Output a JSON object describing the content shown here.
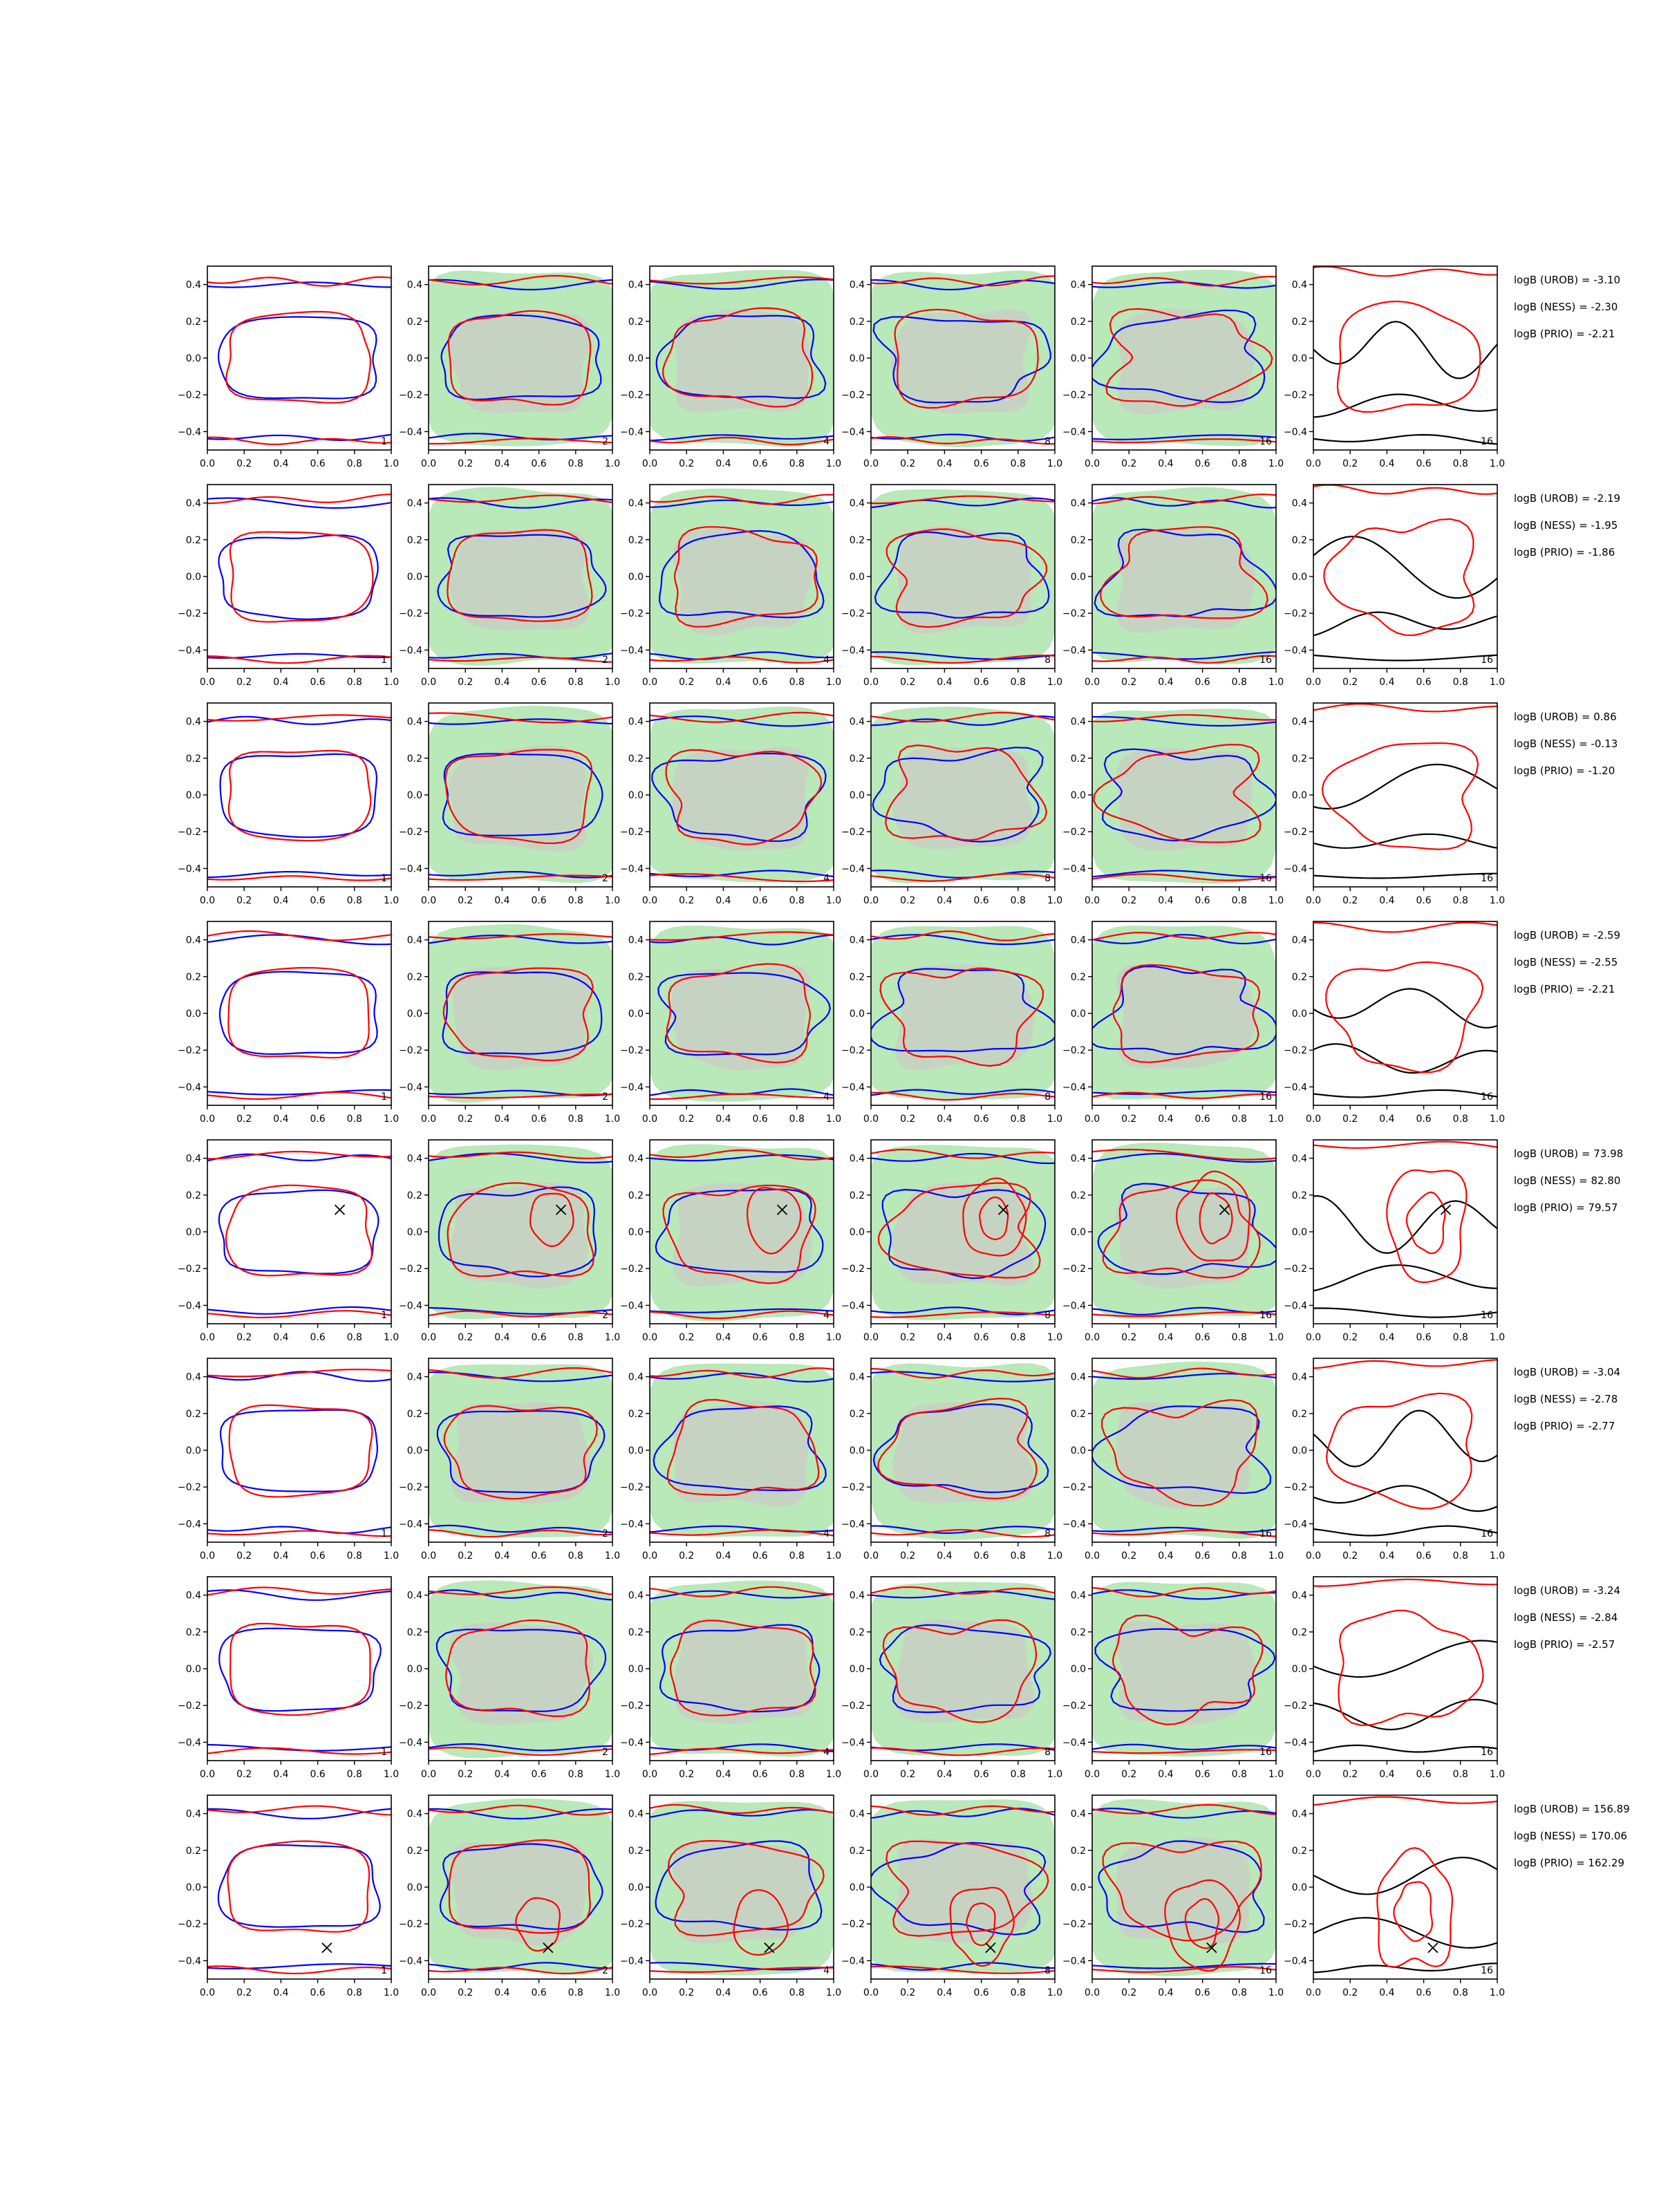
{
  "chart_data": {
    "type": "contour",
    "layout": "8 rows x 6 columns of small multiples",
    "xlim": [
      0.0,
      1.0
    ],
    "ylim": [
      -0.5,
      0.5
    ],
    "x_ticks": [
      "0.0",
      "0.2",
      "0.4",
      "0.6",
      "0.8",
      "1.0"
    ],
    "y_ticks": [
      "0.4",
      "0.2",
      "0.0",
      "−0.2",
      "−0.4"
    ],
    "column_panel_labels": [
      "1",
      "2",
      "4",
      "8",
      "16",
      "16"
    ],
    "colors": {
      "blue": "#0000ff",
      "red": "#ff0000",
      "black": "#000000",
      "band_green": "#b9e8b9",
      "band_grey": "#c8cfc4"
    },
    "rows": [
      {
        "stats": [
          "logB (UROB) = -3.10",
          "logB (NESS) = -2.30",
          "logB (PRIO) = -2.21"
        ],
        "marker": null
      },
      {
        "stats": [
          "logB (UROB) = -2.19",
          "logB (NESS) = -1.95",
          "logB (PRIO) = -1.86"
        ],
        "marker": null
      },
      {
        "stats": [
          "logB (UROB) = 0.86",
          "logB (NESS) = -0.13",
          "logB (PRIO) = -1.20"
        ],
        "marker": null
      },
      {
        "stats": [
          "logB (UROB) = -2.59",
          "logB (NESS) = -2.55",
          "logB (PRIO) = -2.21"
        ],
        "marker": null
      },
      {
        "stats": [
          "logB (UROB) = 73.98",
          "logB (NESS) = 82.80",
          "logB (PRIO) = 79.57"
        ],
        "marker": [
          0.72,
          0.12
        ]
      },
      {
        "stats": [
          "logB (UROB) = -3.04",
          "logB (NESS) = -2.78",
          "logB (PRIO) = -2.77"
        ],
        "marker": null
      },
      {
        "stats": [
          "logB (UROB) = -3.24",
          "logB (NESS) = -2.84",
          "logB (PRIO) = -2.57"
        ],
        "marker": null
      },
      {
        "stats": [
          "logB (UROB) = 156.89",
          "logB (NESS) = 170.06",
          "logB (PRIO) = 162.29"
        ],
        "marker": [
          0.65,
          -0.33
        ]
      }
    ]
  }
}
